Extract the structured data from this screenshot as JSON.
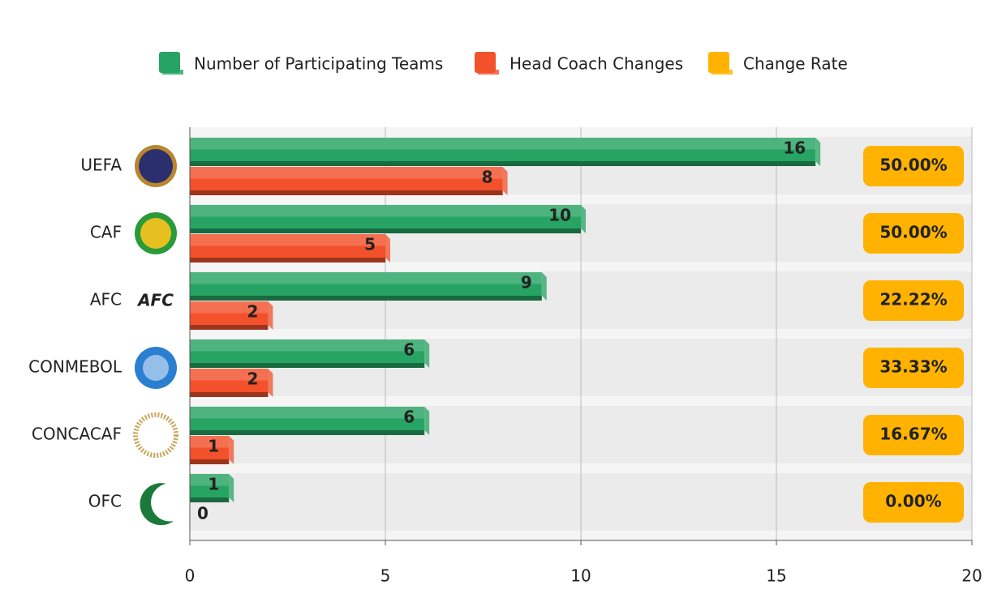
{
  "chart_data": {
    "type": "bar",
    "orientation": "horizontal",
    "categories": [
      "UEFA",
      "CAF",
      "AFC",
      "CONMEBOL",
      "CONCACAF",
      "OFC"
    ],
    "series": [
      {
        "name": "Number of Participating Teams",
        "color": "#27a463",
        "values": [
          16,
          10,
          9,
          6,
          6,
          1
        ]
      },
      {
        "name": "Head Coach Changes",
        "color": "#f2512b",
        "values": [
          8,
          5,
          2,
          2,
          1,
          0
        ]
      },
      {
        "name": "Change Rate",
        "color": "#ffb300",
        "values": [
          50,
          50,
          22.22,
          33.33,
          16.67,
          0
        ],
        "value_labels": [
          "50.00%",
          "50.00%",
          "22.22%",
          "33.33%",
          "16.67%",
          "0.00%"
        ]
      }
    ],
    "xlim": [
      0,
      20
    ],
    "xticks": [
      0,
      5,
      10,
      15,
      20
    ],
    "grid": true,
    "legend": "top"
  }
}
